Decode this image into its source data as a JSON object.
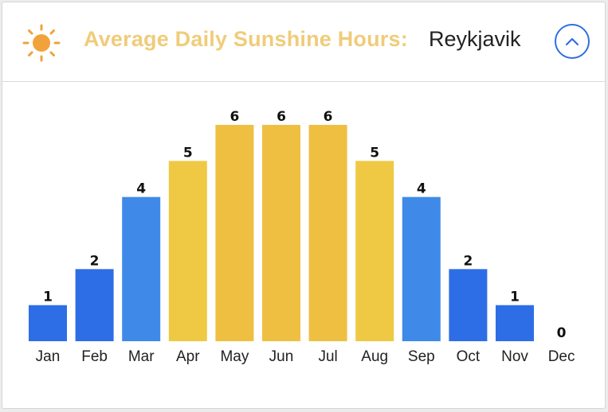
{
  "header": {
    "title": "Average Daily Sunshine Hours:",
    "city": "Reykjavik",
    "icon": "sun-icon",
    "collapse_icon": "chevron-up-icon"
  },
  "colors": {
    "title": "#f0cc7a",
    "sun": "#f2a23a",
    "button": "#2f6fe0"
  },
  "chart_data": {
    "type": "bar",
    "categories": [
      "Jan",
      "Feb",
      "Mar",
      "Apr",
      "May",
      "Jun",
      "Jul",
      "Aug",
      "Sep",
      "Oct",
      "Nov",
      "Dec"
    ],
    "values": [
      1,
      2,
      4,
      5,
      6,
      6,
      6,
      5,
      4,
      2,
      1,
      0
    ],
    "colors": [
      "#2d6ee6",
      "#2d6ee6",
      "#3f8ae8",
      "#f0c944",
      "#efbf42",
      "#efbf42",
      "#efbf42",
      "#f0c944",
      "#3f8ae8",
      "#2d6ee6",
      "#2d6ee6",
      "#2d6ee6"
    ],
    "title": "",
    "xlabel": "",
    "ylabel": "",
    "ylim": [
      0,
      6
    ],
    "grid": false,
    "legend": "none",
    "data_labels": true
  }
}
